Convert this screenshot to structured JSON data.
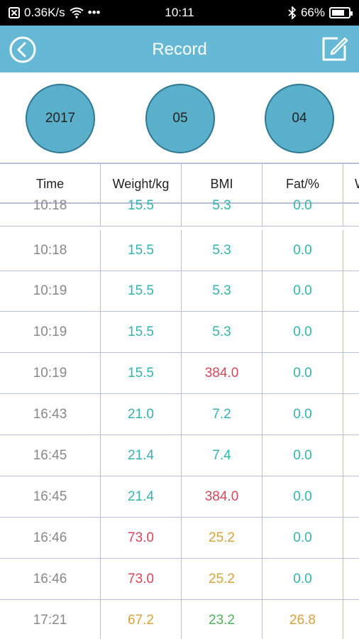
{
  "status_bar": {
    "speed": "0.36K/s",
    "dots": "•••",
    "time": "10:11",
    "battery": "66%"
  },
  "header": {
    "title": "Record"
  },
  "dates": {
    "year": "2017",
    "month": "05",
    "day": "04"
  },
  "table": {
    "columns": [
      "Time",
      "Weight/kg",
      "BMI",
      "Fat/%",
      "W"
    ],
    "rows": [
      {
        "time": "10:18",
        "weight": "15.5",
        "bmi": "5.3",
        "fat": "0.0",
        "c": [
          "teal",
          "teal",
          "teal"
        ]
      },
      {
        "time": "10:18",
        "weight": "15.5",
        "bmi": "5.3",
        "fat": "0.0",
        "c": [
          "teal",
          "teal",
          "teal"
        ]
      },
      {
        "time": "10:19",
        "weight": "15.5",
        "bmi": "5.3",
        "fat": "0.0",
        "c": [
          "teal",
          "teal",
          "teal"
        ]
      },
      {
        "time": "10:19",
        "weight": "15.5",
        "bmi": "5.3",
        "fat": "0.0",
        "c": [
          "teal",
          "teal",
          "teal"
        ]
      },
      {
        "time": "10:19",
        "weight": "15.5",
        "bmi": "384.0",
        "fat": "0.0",
        "c": [
          "teal",
          "red",
          "teal"
        ]
      },
      {
        "time": "16:43",
        "weight": "21.0",
        "bmi": "7.2",
        "fat": "0.0",
        "c": [
          "teal",
          "teal",
          "teal"
        ]
      },
      {
        "time": "16:45",
        "weight": "21.4",
        "bmi": "7.4",
        "fat": "0.0",
        "c": [
          "teal",
          "teal",
          "teal"
        ]
      },
      {
        "time": "16:45",
        "weight": "21.4",
        "bmi": "384.0",
        "fat": "0.0",
        "c": [
          "teal",
          "red",
          "teal"
        ]
      },
      {
        "time": "16:46",
        "weight": "73.0",
        "bmi": "25.2",
        "fat": "0.0",
        "c": [
          "red",
          "orange",
          "teal"
        ]
      },
      {
        "time": "16:46",
        "weight": "73.0",
        "bmi": "25.2",
        "fat": "0.0",
        "c": [
          "red",
          "orange",
          "teal"
        ]
      },
      {
        "time": "17:21",
        "weight": "67.2",
        "bmi": "23.2",
        "fat": "26.8",
        "c": [
          "orange",
          "green",
          "orange"
        ]
      }
    ]
  },
  "colors": {
    "header": "#66b9d4",
    "circle": "#5aafcb",
    "teal": "#33b3ad",
    "red": "#d9465a",
    "orange": "#d8a23c",
    "green": "#4fb25a"
  },
  "icons": {
    "back": "back-arrow-icon",
    "edit": "edit-icon"
  }
}
